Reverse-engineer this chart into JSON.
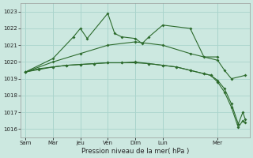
{
  "background_color": "#cce8e0",
  "grid_color": "#aad4cc",
  "line_color": "#2d6b2d",
  "title": "Pression niveau de la mer( hPa )",
  "ylim": [
    1015.5,
    1023.5
  ],
  "yticks": [
    1016,
    1017,
    1018,
    1019,
    1020,
    1021,
    1022,
    1023
  ],
  "x_tick_pos": [
    0,
    24,
    48,
    72,
    96,
    120,
    168
  ],
  "x_tick_lab": [
    "Sam",
    "Mar",
    "Jeu",
    "Ven",
    "Dim",
    "Lun",
    "Mer"
  ],
  "xlim": [
    -4,
    196
  ],
  "marker_size": 2.0,
  "series1_x": [
    0,
    24,
    42,
    48,
    54,
    72,
    78,
    84,
    96,
    102,
    108,
    120,
    144,
    156,
    168
  ],
  "series1_y": [
    1019.4,
    1020.2,
    1021.5,
    1022.0,
    1021.4,
    1022.9,
    1021.7,
    1021.5,
    1021.4,
    1021.1,
    1021.5,
    1022.2,
    1022.0,
    1020.3,
    1020.3
  ],
  "series2_x": [
    0,
    24,
    48,
    72,
    96,
    120,
    144,
    168,
    174,
    180,
    192
  ],
  "series2_y": [
    1019.4,
    1020.0,
    1020.5,
    1021.0,
    1021.2,
    1021.0,
    1020.5,
    1020.1,
    1019.5,
    1019.0,
    1019.2
  ],
  "series3_x": [
    0,
    12,
    24,
    36,
    48,
    60,
    72,
    84,
    96,
    108,
    120,
    132,
    144,
    156,
    162,
    168,
    174,
    180,
    186,
    190,
    192
  ],
  "series3_y": [
    1019.4,
    1019.6,
    1019.7,
    1019.8,
    1019.85,
    1019.9,
    1019.95,
    1019.95,
    1020.0,
    1019.9,
    1019.8,
    1019.7,
    1019.5,
    1019.3,
    1019.2,
    1018.8,
    1018.2,
    1017.3,
    1016.1,
    1016.5,
    1016.4
  ],
  "series4_x": [
    0,
    12,
    24,
    36,
    48,
    60,
    72,
    84,
    96,
    108,
    120,
    132,
    144,
    156,
    162,
    168,
    174,
    180,
    186,
    190,
    192
  ],
  "series4_y": [
    1019.4,
    1019.55,
    1019.7,
    1019.8,
    1019.85,
    1019.9,
    1019.95,
    1019.95,
    1019.95,
    1019.9,
    1019.8,
    1019.7,
    1019.5,
    1019.3,
    1019.2,
    1018.9,
    1018.4,
    1017.5,
    1016.3,
    1017.0,
    1016.6
  ]
}
